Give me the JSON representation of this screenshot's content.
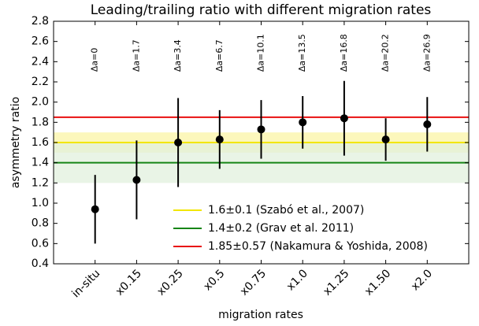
{
  "chart_data": {
    "type": "errorbar",
    "title": "Leading/trailing ratio with different migration rates",
    "xlabel": "migration rates",
    "ylabel": "asymmetry ratio",
    "categories": [
      "in-situ",
      "x0.15",
      "x0.25",
      "x0.5",
      "x0.75",
      "x1.0",
      "x1.25",
      "x1.50",
      "x2.0"
    ],
    "annotations": [
      "Δa=0",
      "Δa=1.7",
      "Δa=3.4",
      "Δa=6.7",
      "Δa=10.1",
      "Δa=13.5",
      "Δa=16.8",
      "Δa=20.2",
      "Δa=26.9"
    ],
    "series": [
      {
        "color": "#000000",
        "values": [
          0.94,
          1.23,
          1.6,
          1.63,
          1.73,
          1.8,
          1.84,
          1.63,
          1.78
        ],
        "errors": [
          0.34,
          0.39,
          0.44,
          0.29,
          0.29,
          0.26,
          0.37,
          0.21,
          0.27
        ]
      }
    ],
    "reference_lines": [
      {
        "name": "1.6±0.1 (Szabó et al., 2007)",
        "value": 1.6,
        "error": 0.1,
        "color": "#f2e600",
        "band_color": "#fbf4a6"
      },
      {
        "name": "1.4±0.2 (Grav et al. 2011)",
        "value": 1.4,
        "error": 0.2,
        "color": "#168516",
        "band_color": "#e1f0de"
      },
      {
        "name": "1.85±0.57 (Nakamura & Yoshida, 2008)",
        "value": 1.85,
        "color": "#e81010"
      }
    ],
    "ylim": [
      0.4,
      2.8
    ],
    "yticks": [
      0.4,
      0.6,
      0.8,
      {
        "value": 1,
        "label": "1.0"
      },
      1.2,
      1.4,
      1.6,
      1.8,
      {
        "value": 2,
        "label": "2.0"
      },
      2.2,
      2.4,
      2.6,
      2.8
    ],
    "legend": "lower right"
  }
}
